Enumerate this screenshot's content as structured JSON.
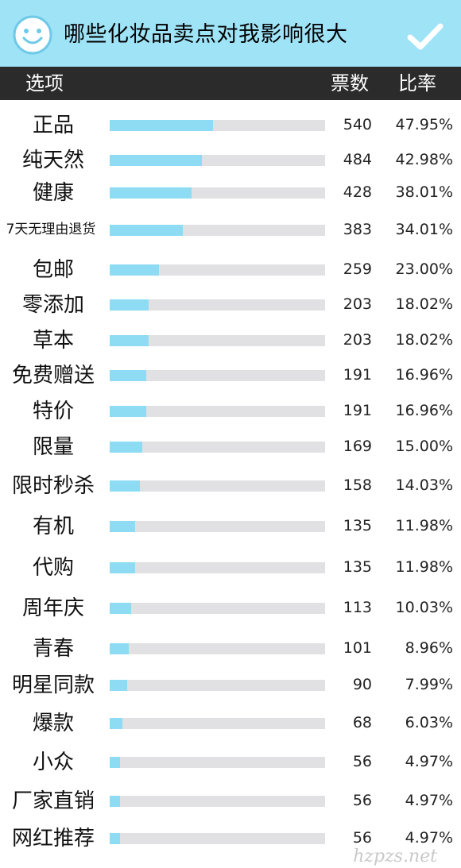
{
  "header": {
    "title": "哪些化妆品卖点对我影响很大",
    "icons": [
      "smile-icon",
      "check-icon"
    ],
    "background_color": "#9fe3f7"
  },
  "columns": {
    "option": "选项",
    "votes": "票数",
    "rate": "比率"
  },
  "watermark": "hzpzs.net",
  "chart_data": {
    "type": "bar",
    "orientation": "horizontal",
    "xlim": [
      0,
      100
    ],
    "categories": [
      "正品",
      "纯天然",
      "健康",
      "7天无理由退货",
      "包邮",
      "零添加",
      "草本",
      "免费赠送",
      "特价",
      "限量",
      "限时秒杀",
      "有机",
      "代购",
      "周年庆",
      "青春",
      "明星同款",
      "爆款",
      "小众",
      "厂家直销",
      "网红推荐"
    ],
    "votes": [
      540,
      484,
      428,
      383,
      259,
      203,
      203,
      191,
      191,
      169,
      158,
      135,
      135,
      113,
      101,
      90,
      68,
      56,
      56,
      56
    ],
    "values": [
      47.95,
      42.98,
      38.01,
      34.01,
      23.0,
      18.02,
      18.02,
      16.96,
      16.96,
      15.0,
      14.03,
      11.98,
      11.98,
      10.03,
      8.96,
      7.99,
      6.03,
      4.97,
      4.97,
      4.97
    ],
    "vote_labels": [
      "540",
      "484",
      "428",
      "383",
      "259",
      "203",
      "203",
      "191",
      "191",
      "169",
      "158",
      "135",
      "135",
      "113",
      "101",
      "90",
      "68",
      "56",
      "56",
      "56"
    ],
    "rate_labels": [
      "47.95%",
      "42.98%",
      "38.01%",
      "34.01%",
      "23.00%",
      "18.02%",
      "18.02%",
      "16.96%",
      "16.96%",
      "15.00%",
      "14.03%",
      "11.98%",
      "11.98%",
      "10.03%",
      "8.96%",
      "7.99%",
      "6.03%",
      "4.97%",
      "4.97%",
      "4.97%"
    ],
    "bar_color": "#8ddcf3",
    "track_color": "#e1e1e3"
  }
}
